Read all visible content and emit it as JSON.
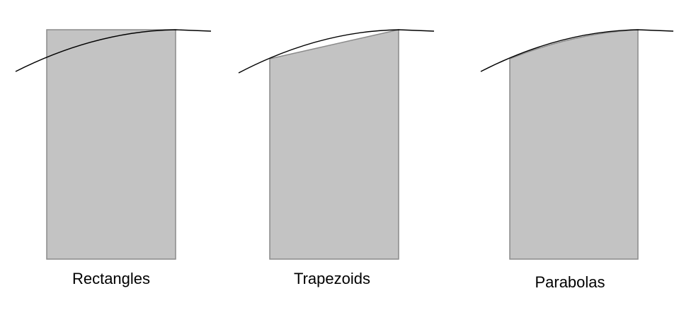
{
  "panels": [
    {
      "label": "Rectangles",
      "method": "rectangle"
    },
    {
      "label": "Trapezoids",
      "method": "trapezoid"
    },
    {
      "label": "Parabolas",
      "method": "parabola"
    }
  ],
  "colors": {
    "shaded_region": "#c3c3c3",
    "region_outline": "#8a8a8a",
    "curve": "#000000",
    "background": "#ffffff"
  }
}
